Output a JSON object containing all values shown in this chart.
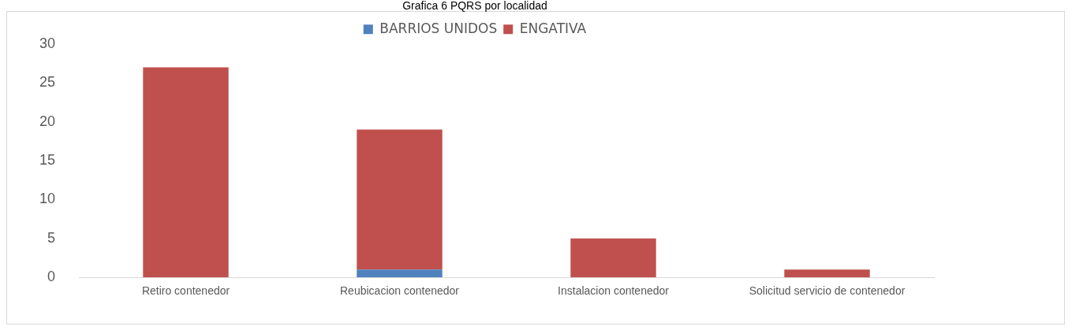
{
  "chart_data": {
    "type": "bar",
    "title": "Grafica 6 PQRS por localidad",
    "categories": [
      "Retiro contenedor",
      "Reubicacion contenedor",
      "Instalacion contenedor",
      "Solicitud servicio de contenedor"
    ],
    "series": [
      {
        "name": "BARRIOS UNIDOS",
        "color": "#4f81bd",
        "values": [
          0,
          1,
          0,
          0
        ]
      },
      {
        "name": "ENGATIVA",
        "color": "#c0504d",
        "values": [
          27,
          18,
          5,
          1
        ]
      }
    ],
    "stacked": true,
    "ylim": [
      0,
      30
    ],
    "yticks": [
      0,
      5,
      10,
      15,
      20,
      25,
      30
    ],
    "grid": false,
    "legend": "top"
  }
}
